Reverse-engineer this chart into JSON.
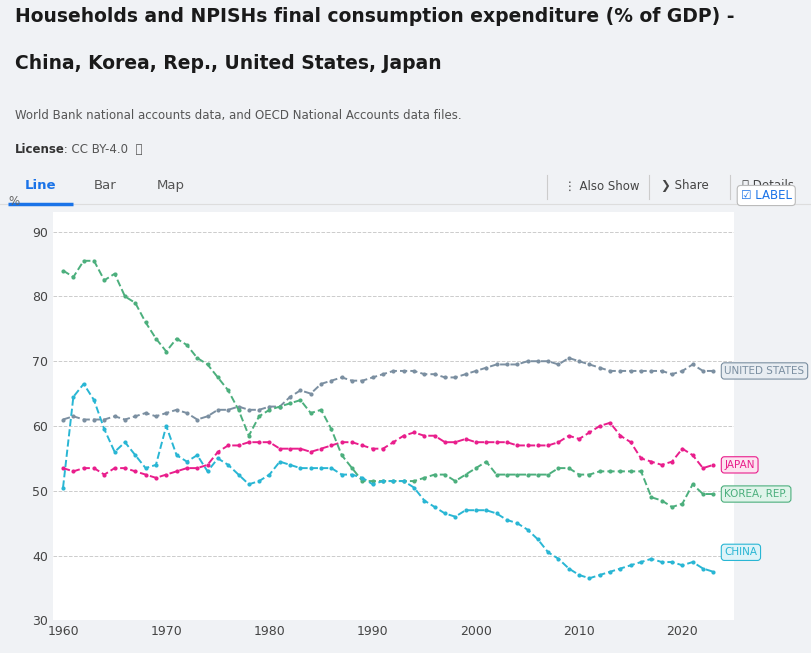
{
  "title1": "Households and NPISHs final consumption expenditure (% of GDP) -",
  "title2": "China, Korea, Rep., United States, Japan",
  "source": "World Bank national accounts data, and OECD National Accounts data files.",
  "license_bold": "License",
  "license_rest": " : CC BY-4.0  ⓘ",
  "ylabel": "%",
  "ylim": [
    30,
    93
  ],
  "yticks": [
    30,
    40,
    50,
    60,
    70,
    80,
    90
  ],
  "xlim": [
    1959,
    2025
  ],
  "xticks": [
    1960,
    1970,
    1980,
    1990,
    2000,
    2010,
    2020
  ],
  "tab_labels": [
    "Line",
    "Bar",
    "Map"
  ],
  "active_tab": "Line",
  "bg_color": "#f0f2f5",
  "plot_bg": "#ffffff",
  "grid_color": "#cccccc",
  "united_states": {
    "years": [
      1960,
      1961,
      1962,
      1963,
      1964,
      1965,
      1966,
      1967,
      1968,
      1969,
      1970,
      1971,
      1972,
      1973,
      1974,
      1975,
      1976,
      1977,
      1978,
      1979,
      1980,
      1981,
      1982,
      1983,
      1984,
      1985,
      1986,
      1987,
      1988,
      1989,
      1990,
      1991,
      1992,
      1993,
      1994,
      1995,
      1996,
      1997,
      1998,
      1999,
      2000,
      2001,
      2002,
      2003,
      2004,
      2005,
      2006,
      2007,
      2008,
      2009,
      2010,
      2011,
      2012,
      2013,
      2014,
      2015,
      2016,
      2017,
      2018,
      2019,
      2020,
      2021,
      2022,
      2023
    ],
    "values": [
      61.0,
      61.5,
      61.0,
      61.0,
      61.0,
      61.5,
      61.0,
      61.5,
      62.0,
      61.5,
      62.0,
      62.5,
      62.0,
      61.0,
      61.5,
      62.5,
      62.5,
      63.0,
      62.5,
      62.5,
      63.0,
      63.0,
      64.5,
      65.5,
      65.0,
      66.5,
      67.0,
      67.5,
      67.0,
      67.0,
      67.5,
      68.0,
      68.5,
      68.5,
      68.5,
      68.0,
      68.0,
      67.5,
      67.5,
      68.0,
      68.5,
      69.0,
      69.5,
      69.5,
      69.5,
      70.0,
      70.0,
      70.0,
      69.5,
      70.5,
      70.0,
      69.5,
      69.0,
      68.5,
      68.5,
      68.5,
      68.5,
      68.5,
      68.5,
      68.0,
      68.5,
      69.5,
      68.5,
      68.5
    ],
    "color": "#7B8FA1",
    "label": "UNITED STATES",
    "label_color": "#7B8FA1",
    "label_bg": "#e8edf2"
  },
  "japan": {
    "years": [
      1960,
      1961,
      1962,
      1963,
      1964,
      1965,
      1966,
      1967,
      1968,
      1969,
      1970,
      1971,
      1972,
      1973,
      1974,
      1975,
      1976,
      1977,
      1978,
      1979,
      1980,
      1981,
      1982,
      1983,
      1984,
      1985,
      1986,
      1987,
      1988,
      1989,
      1990,
      1991,
      1992,
      1993,
      1994,
      1995,
      1996,
      1997,
      1998,
      1999,
      2000,
      2001,
      2002,
      2003,
      2004,
      2005,
      2006,
      2007,
      2008,
      2009,
      2010,
      2011,
      2012,
      2013,
      2014,
      2015,
      2016,
      2017,
      2018,
      2019,
      2020,
      2021,
      2022,
      2023
    ],
    "values": [
      53.5,
      53.0,
      53.5,
      53.5,
      52.5,
      53.5,
      53.5,
      53.0,
      52.5,
      52.0,
      52.5,
      53.0,
      53.5,
      53.5,
      54.0,
      56.0,
      57.0,
      57.0,
      57.5,
      57.5,
      57.5,
      56.5,
      56.5,
      56.5,
      56.0,
      56.5,
      57.0,
      57.5,
      57.5,
      57.0,
      56.5,
      56.5,
      57.5,
      58.5,
      59.0,
      58.5,
      58.5,
      57.5,
      57.5,
      58.0,
      57.5,
      57.5,
      57.5,
      57.5,
      57.0,
      57.0,
      57.0,
      57.0,
      57.5,
      58.5,
      58.0,
      59.0,
      60.0,
      60.5,
      58.5,
      57.5,
      55.0,
      54.5,
      54.0,
      54.5,
      56.5,
      55.5,
      53.5,
      54.0
    ],
    "color": "#E91E8C",
    "label": "JAPAN",
    "label_color": "#E91E8C",
    "label_bg": "#fce4f0"
  },
  "korea": {
    "years": [
      1960,
      1961,
      1962,
      1963,
      1964,
      1965,
      1966,
      1967,
      1968,
      1969,
      1970,
      1971,
      1972,
      1973,
      1974,
      1975,
      1976,
      1977,
      1978,
      1979,
      1980,
      1981,
      1982,
      1983,
      1984,
      1985,
      1986,
      1987,
      1988,
      1989,
      1990,
      1991,
      1992,
      1993,
      1994,
      1995,
      1996,
      1997,
      1998,
      1999,
      2000,
      2001,
      2002,
      2003,
      2004,
      2005,
      2006,
      2007,
      2008,
      2009,
      2010,
      2011,
      2012,
      2013,
      2014,
      2015,
      2016,
      2017,
      2018,
      2019,
      2020,
      2021,
      2022,
      2023
    ],
    "values": [
      84.0,
      83.0,
      85.5,
      85.5,
      82.5,
      83.5,
      80.0,
      79.0,
      76.0,
      73.5,
      71.5,
      73.5,
      72.5,
      70.5,
      69.5,
      67.5,
      65.5,
      62.5,
      58.5,
      61.5,
      62.5,
      63.0,
      63.5,
      64.0,
      62.0,
      62.5,
      59.5,
      55.5,
      53.5,
      51.5,
      51.5,
      51.5,
      51.5,
      51.5,
      51.5,
      52.0,
      52.5,
      52.5,
      51.5,
      52.5,
      53.5,
      54.5,
      52.5,
      52.5,
      52.5,
      52.5,
      52.5,
      52.5,
      53.5,
      53.5,
      52.5,
      52.5,
      53.0,
      53.0,
      53.0,
      53.0,
      53.0,
      49.0,
      48.5,
      47.5,
      48.0,
      51.0,
      49.5,
      49.5
    ],
    "color": "#4CAF7D",
    "label": "KOREA, REP.",
    "label_color": "#4CAF7D",
    "label_bg": "#e0f4ea"
  },
  "china": {
    "years": [
      1960,
      1961,
      1962,
      1963,
      1964,
      1965,
      1966,
      1967,
      1968,
      1969,
      1970,
      1971,
      1972,
      1973,
      1974,
      1975,
      1976,
      1977,
      1978,
      1979,
      1980,
      1981,
      1982,
      1983,
      1984,
      1985,
      1986,
      1987,
      1988,
      1989,
      1990,
      1991,
      1992,
      1993,
      1994,
      1995,
      1996,
      1997,
      1998,
      1999,
      2000,
      2001,
      2002,
      2003,
      2004,
      2005,
      2006,
      2007,
      2008,
      2009,
      2010,
      2011,
      2012,
      2013,
      2014,
      2015,
      2016,
      2017,
      2018,
      2019,
      2020,
      2021,
      2022,
      2023
    ],
    "values": [
      50.5,
      64.5,
      66.5,
      64.0,
      59.5,
      56.0,
      57.5,
      55.5,
      53.5,
      54.0,
      60.0,
      55.5,
      54.5,
      55.5,
      53.0,
      55.0,
      54.0,
      52.5,
      51.0,
      51.5,
      52.5,
      54.5,
      54.0,
      53.5,
      53.5,
      53.5,
      53.5,
      52.5,
      52.5,
      52.0,
      51.0,
      51.5,
      51.5,
      51.5,
      50.5,
      48.5,
      47.5,
      46.5,
      46.0,
      47.0,
      47.0,
      47.0,
      46.5,
      45.5,
      45.0,
      44.0,
      42.5,
      40.5,
      39.5,
      38.0,
      37.0,
      36.5,
      37.0,
      37.5,
      38.0,
      38.5,
      39.0,
      39.5,
      39.0,
      39.0,
      38.5,
      39.0,
      38.0,
      37.5
    ],
    "color": "#29B6D4",
    "label": "CHINA",
    "label_color": "#29B6D4",
    "label_bg": "#ddf3f8"
  }
}
